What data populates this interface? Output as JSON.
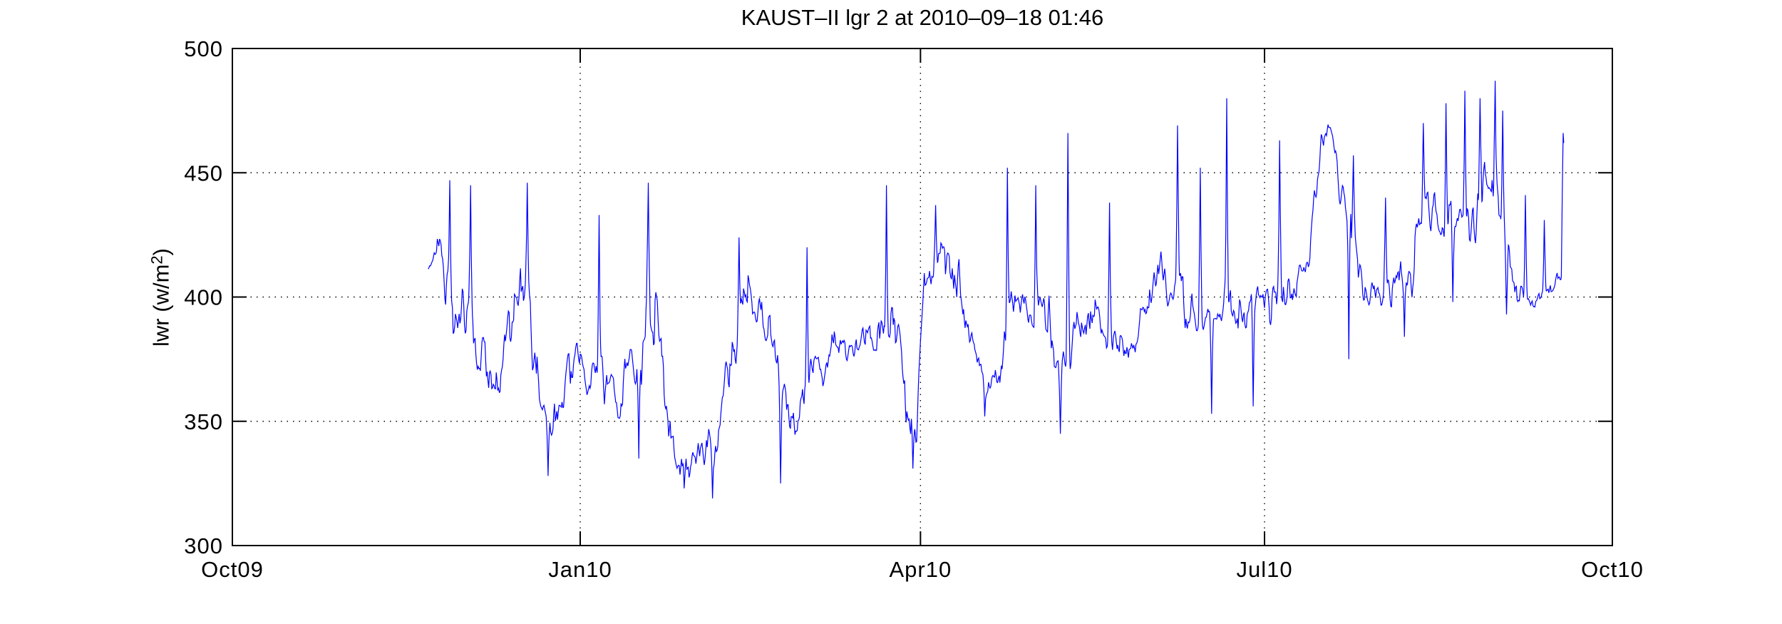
{
  "window": {
    "background": "#ffffff"
  },
  "chart_data": {
    "type": "line",
    "title": "KAUST–II lgr 2 at 2010–09–18 01:46",
    "xlabel": "",
    "ylabel": "lwr (w/m²)",
    "ylabel_parts": {
      "base": "lwr (w/m",
      "sup": "2",
      "close": ")"
    },
    "legend": "none",
    "grid": {
      "style": "dotted",
      "color": "#000000",
      "y_values": [
        350,
        400,
        450
      ],
      "x_days": [
        92,
        182,
        273
      ]
    },
    "axis_color": "#000000",
    "line_color": "#0000ff",
    "x_axis": {
      "range_days": [
        0,
        365
      ],
      "epoch": "Oct 1 2009",
      "ticks": [
        {
          "day": 0,
          "label": "Oct09"
        },
        {
          "day": 92,
          "label": "Jan10"
        },
        {
          "day": 182,
          "label": "Apr10"
        },
        {
          "day": 273,
          "label": "Jul10"
        },
        {
          "day": 365,
          "label": "Oct10"
        }
      ]
    },
    "y_axis": {
      "range": [
        300,
        500
      ],
      "ticks": [
        {
          "value": 500,
          "label": "500"
        },
        {
          "value": 450,
          "label": "450"
        },
        {
          "value": 400,
          "label": "400"
        },
        {
          "value": 350,
          "label": "350"
        },
        {
          "value": 300,
          "label": "300"
        }
      ]
    },
    "series": {
      "name": "lwr",
      "start_day": 51.8,
      "end_day": 352.15,
      "step_day": 0.2,
      "value_min": 318,
      "value_max": 487,
      "trend_anchors": [
        [
          51.8,
          412,
          8
        ],
        [
          54,
          415,
          15
        ],
        [
          57,
          400,
          32
        ],
        [
          61,
          390,
          35
        ],
        [
          65,
          385,
          35
        ],
        [
          68,
          362,
          25
        ],
        [
          71,
          360,
          20
        ],
        [
          74,
          385,
          28
        ],
        [
          78,
          395,
          35
        ],
        [
          82,
          370,
          38
        ],
        [
          85,
          352,
          30
        ],
        [
          88,
          368,
          25
        ],
        [
          91,
          380,
          20
        ],
        [
          95,
          372,
          25
        ],
        [
          99,
          360,
          28
        ],
        [
          103,
          352,
          28
        ],
        [
          107,
          365,
          32
        ],
        [
          110,
          390,
          35
        ],
        [
          113,
          378,
          35
        ],
        [
          116,
          352,
          28
        ],
        [
          119,
          338,
          20
        ],
        [
          122,
          335,
          16
        ],
        [
          125,
          342,
          20
        ],
        [
          128,
          338,
          20
        ],
        [
          131,
          365,
          28
        ],
        [
          134,
          385,
          30
        ],
        [
          137,
          395,
          28
        ],
        [
          140,
          390,
          28
        ],
        [
          143,
          372,
          28
        ],
        [
          146,
          352,
          25
        ],
        [
          149,
          345,
          20
        ],
        [
          152,
          362,
          20
        ],
        [
          156,
          368,
          20
        ],
        [
          160,
          375,
          18
        ],
        [
          164,
          378,
          16
        ],
        [
          168,
          385,
          20
        ],
        [
          172,
          402,
          30
        ],
        [
          175,
          408,
          30
        ],
        [
          178,
          360,
          28
        ],
        [
          181,
          342,
          18
        ],
        [
          183,
          405,
          22
        ],
        [
          186,
          402,
          25
        ],
        [
          189,
          408,
          25
        ],
        [
          192,
          395,
          25
        ],
        [
          195,
          385,
          25
        ],
        [
          198,
          380,
          20
        ],
        [
          201,
          372,
          16
        ],
        [
          204,
          390,
          28
        ],
        [
          207,
          412,
          25
        ],
        [
          210,
          408,
          22
        ],
        [
          213,
          398,
          25
        ],
        [
          216,
          388,
          30
        ],
        [
          219,
          368,
          25
        ],
        [
          222,
          378,
          28
        ],
        [
          225,
          395,
          25
        ],
        [
          228,
          398,
          22
        ],
        [
          231,
          390,
          20
        ],
        [
          234,
          382,
          18
        ],
        [
          237,
          372,
          15
        ],
        [
          240,
          385,
          20
        ],
        [
          243,
          395,
          22
        ],
        [
          246,
          398,
          25
        ],
        [
          249,
          402,
          28
        ],
        [
          252,
          395,
          25
        ],
        [
          255,
          392,
          22
        ],
        [
          258,
          398,
          20
        ],
        [
          261,
          398,
          22
        ],
        [
          264,
          400,
          25
        ],
        [
          267,
          395,
          20
        ],
        [
          270,
          392,
          18
        ],
        [
          273,
          398,
          20
        ],
        [
          276,
          400,
          22
        ],
        [
          279,
          405,
          25
        ],
        [
          282,
          412,
          25
        ],
        [
          285,
          432,
          25
        ],
        [
          288,
          458,
          16
        ],
        [
          290,
          468,
          10
        ],
        [
          292,
          458,
          18
        ],
        [
          294,
          438,
          22
        ],
        [
          297,
          420,
          22
        ],
        [
          300,
          408,
          20
        ],
        [
          303,
          415,
          22
        ],
        [
          306,
          412,
          22
        ],
        [
          309,
          405,
          25
        ],
        [
          312,
          415,
          28
        ],
        [
          315,
          425,
          28
        ],
        [
          318,
          432,
          30
        ],
        [
          321,
          438,
          32
        ],
        [
          324,
          440,
          33
        ],
        [
          327,
          442,
          34
        ],
        [
          330,
          444,
          35
        ],
        [
          333,
          440,
          34
        ],
        [
          336,
          428,
          30
        ],
        [
          338,
          415,
          22
        ],
        [
          340,
          405,
          14
        ],
        [
          343,
          404,
          11
        ],
        [
          346,
          403,
          10
        ],
        [
          349,
          404,
          9
        ],
        [
          351.5,
          406,
          8
        ],
        [
          352.15,
          455,
          10
        ]
      ],
      "events": [
        [
          57.5,
          447
        ],
        [
          63,
          445
        ],
        [
          78,
          446
        ],
        [
          83.5,
          328
        ],
        [
          97,
          433
        ],
        [
          107.5,
          335
        ],
        [
          110,
          446
        ],
        [
          119.5,
          323
        ],
        [
          127,
          319
        ],
        [
          134,
          424
        ],
        [
          145,
          325
        ],
        [
          152,
          420
        ],
        [
          173,
          445
        ],
        [
          180,
          331
        ],
        [
          186,
          437
        ],
        [
          199,
          352
        ],
        [
          205,
          452
        ],
        [
          212.5,
          445
        ],
        [
          219,
          345
        ],
        [
          221,
          466
        ],
        [
          232,
          438
        ],
        [
          250,
          469
        ],
        [
          256,
          452
        ],
        [
          259,
          353
        ],
        [
          263,
          480
        ],
        [
          270,
          356
        ],
        [
          277,
          463
        ],
        [
          295.3,
          375
        ],
        [
          296.5,
          457
        ],
        [
          305,
          440
        ],
        [
          310,
          384
        ],
        [
          315,
          470
        ],
        [
          321,
          478
        ],
        [
          322.8,
          398
        ],
        [
          326,
          483
        ],
        [
          330,
          480
        ],
        [
          334,
          487
        ],
        [
          336,
          475
        ],
        [
          337,
          393
        ],
        [
          342,
          441
        ],
        [
          344.5,
          396
        ],
        [
          347,
          431
        ],
        [
          352,
          466
        ]
      ],
      "noise": {
        "seed": 13,
        "octaves": [
          [
            9,
            0.45
          ],
          [
            2.8,
            0.3
          ],
          [
            0.8,
            0.3
          ],
          [
            0.3,
            0.22
          ]
        ]
      }
    }
  }
}
